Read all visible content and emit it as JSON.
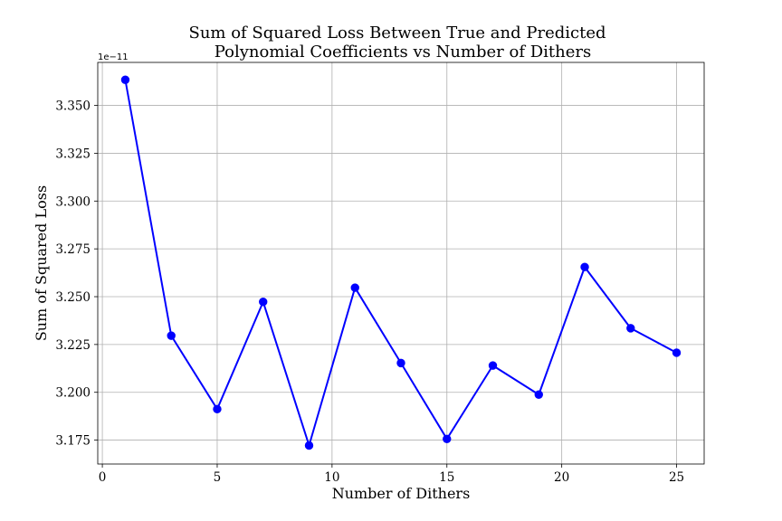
{
  "chart_data": {
    "type": "line",
    "title_lines": [
      "Sum of Squared Loss Between True and Predicted",
      "Polynomial Coefficients vs Number of Dithers"
    ],
    "xlabel": "Number of Dithers",
    "ylabel": "Sum of Squared Loss",
    "y_offset_label": "1e−11",
    "xlim": [
      -0.2,
      26.2
    ],
    "ylim": [
      3.1625,
      3.3725
    ],
    "x_ticks": [
      0,
      5,
      10,
      15,
      20,
      25
    ],
    "y_ticks": [
      3.175,
      3.2,
      3.225,
      3.25,
      3.275,
      3.3,
      3.325,
      3.35
    ],
    "y_tick_labels": [
      "3.175",
      "3.200",
      "3.225",
      "3.250",
      "3.275",
      "3.300",
      "3.325",
      "3.350"
    ],
    "grid": true,
    "series": [
      {
        "color": "#0000ff",
        "marker": "circle",
        "x": [
          1,
          3,
          5,
          7,
          9,
          11,
          13,
          15,
          17,
          19,
          21,
          23,
          25
        ],
        "y": [
          3.3634,
          3.2296,
          3.1912,
          3.2473,
          3.1722,
          3.2547,
          3.2153,
          3.1756,
          3.214,
          3.1988,
          3.2655,
          3.2335,
          3.2207
        ]
      }
    ]
  }
}
